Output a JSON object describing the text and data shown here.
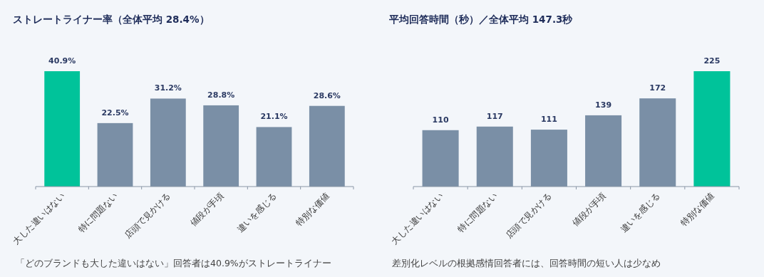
{
  "chart_data": [
    {
      "type": "bar",
      "title": "ストレートライナー率（全体平均 28.4%）",
      "categories": [
        "大した違いはない",
        "特に問題ない",
        "店頭で見かける",
        "値段が手頃",
        "違いを感じる",
        "特別な価値"
      ],
      "values": [
        40.9,
        22.5,
        31.2,
        28.8,
        21.1,
        28.6
      ],
      "value_labels": [
        "40.9%",
        "22.5%",
        "31.2%",
        "28.8%",
        "21.1%",
        "28.6%"
      ],
      "colors": [
        "#00c39a",
        "#7a8fa6",
        "#7a8fa6",
        "#7a8fa6",
        "#7a8fa6",
        "#7a8fa6"
      ],
      "annotations": [
        "「どのブランドも大した違いはない」回答者は40.9%がストレートライナー"
      ]
    },
    {
      "type": "bar",
      "title": "平均回答時間（秒）／全体平均 147.3秒",
      "categories": [
        "大した違いはない",
        "特に問題ない",
        "店頭で見かける",
        "値段が手頃",
        "違いを感じる",
        "特別な価値"
      ],
      "values": [
        110,
        117,
        111,
        139,
        172,
        225
      ],
      "data_labels": true,
      "colors": [
        "#7a8fa6",
        "#7a8fa6",
        "#7a8fa6",
        "#7a8fa6",
        "#7a8fa6",
        "#00c39a"
      ],
      "annotations": [
        "差別化レベルの根拠感情回答者には、回答時間の短い人は少なめ"
      ]
    }
  ]
}
